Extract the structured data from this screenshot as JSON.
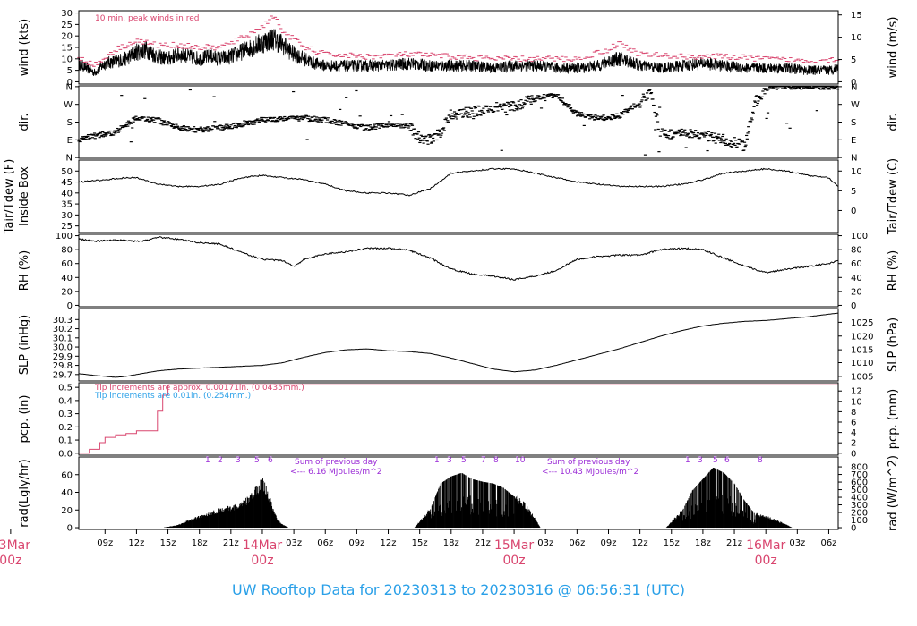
{
  "title": "UW Rooftop Data for 20230313  to  20230316 @ 06:56:31  (UTC)",
  "colors": {
    "title": "#2aa0e8",
    "day_label": "#d9466f",
    "peak": "#d9466f",
    "pcp_fine": "#d9466f",
    "pcp_coarse": "#2aa0e8",
    "annot": "#9a2bd6",
    "trace": "#000000"
  },
  "x_axis": {
    "range_hours": [
      6.5,
      78.9
    ],
    "hour_ticks": [
      {
        "h": 9,
        "label": "09z"
      },
      {
        "h": 12,
        "label": "12z"
      },
      {
        "h": 15,
        "label": "15z"
      },
      {
        "h": 18,
        "label": "18z"
      },
      {
        "h": 21,
        "label": "21z"
      },
      {
        "h": 27,
        "label": "03z"
      },
      {
        "h": 30,
        "label": "06z"
      },
      {
        "h": 33,
        "label": "09z"
      },
      {
        "h": 36,
        "label": "12z"
      },
      {
        "h": 39,
        "label": "15z"
      },
      {
        "h": 42,
        "label": "18z"
      },
      {
        "h": 45,
        "label": "21z"
      },
      {
        "h": 51,
        "label": "03z"
      },
      {
        "h": 54,
        "label": "06z"
      },
      {
        "h": 57,
        "label": "09z"
      },
      {
        "h": 60,
        "label": "12z"
      },
      {
        "h": 63,
        "label": "15z"
      },
      {
        "h": 66,
        "label": "18z"
      },
      {
        "h": 69,
        "label": "21z"
      },
      {
        "h": 75,
        "label": "03z"
      },
      {
        "h": 78,
        "label": "06z"
      }
    ],
    "day_ticks": [
      {
        "h": 0,
        "date": "13Mar",
        "time": "00z"
      },
      {
        "h": 24,
        "date": "14Mar",
        "time": "00z"
      },
      {
        "h": 48,
        "date": "15Mar",
        "time": "00z"
      },
      {
        "h": 72,
        "date": "16Mar",
        "time": "00z"
      }
    ]
  },
  "panels": {
    "wind": {
      "left_label": "wind (kts)",
      "right_label": "wind (m/s)",
      "ylim": [
        0,
        30
      ],
      "left_ticks": [
        "0",
        "5",
        "10",
        "15",
        "20",
        "25",
        "30"
      ],
      "right_ticks": [
        "0",
        "5",
        "10",
        "15"
      ],
      "right_tick_values_kts": [
        0,
        9.72,
        19.44,
        29.16
      ],
      "note": "10 min. peak winds in red"
    },
    "dir": {
      "left_label": "dir.",
      "right_label": "dir.",
      "tick_labels": [
        "N",
        "E",
        "S",
        "W",
        "N"
      ],
      "tick_values_deg": [
        0,
        90,
        180,
        270,
        360
      ]
    },
    "temp": {
      "left_label": "Tair/Tdew (F)",
      "left_label2": "Inside Box",
      "right_label": "Tair/Tdew (C)",
      "ylim": [
        22,
        55
      ],
      "left_ticks": [
        "25",
        "30",
        "35",
        "40",
        "45",
        "50"
      ],
      "right_ticks": [
        "0",
        "5",
        "10"
      ],
      "right_tick_values_f": [
        32,
        41,
        50
      ]
    },
    "rh": {
      "left_label": "RH (%)",
      "right_label": "RH (%)",
      "ylim": [
        0,
        100
      ],
      "ticks": [
        "0",
        "20",
        "40",
        "60",
        "80",
        "100"
      ]
    },
    "slp": {
      "left_label": "SLP (inHg)",
      "right_label": "SLP (hPa)",
      "ylim": [
        29.63,
        30.42
      ],
      "left_ticks": [
        "29.7",
        "29.8",
        "29.9",
        "30.0",
        "30.1",
        "30.2",
        "30.3"
      ],
      "right_ticks": [
        "1005",
        "1010",
        "1015",
        "1020",
        "1025"
      ],
      "right_tick_values_inhg": [
        29.68,
        29.83,
        29.97,
        30.12,
        30.27
      ]
    },
    "pcp": {
      "left_label": "pcp. (in)",
      "right_label": "pcp. (mm)",
      "ylim": [
        0,
        0.52
      ],
      "left_ticks": [
        "0.0",
        "0.1",
        "0.2",
        "0.3",
        "0.4",
        "0.5"
      ],
      "right_ticks": [
        "0",
        "2",
        "4",
        "6",
        "8",
        "10",
        "12"
      ],
      "right_tick_values_in": [
        0,
        0.0787,
        0.1575,
        0.2362,
        0.315,
        0.3937,
        0.4724
      ],
      "note_fine": "Tip increments are approx. 0.00171in. (0.0435mm.)",
      "note_coarse": "Tip increments are 0.01in. (0.254mm.)"
    },
    "rad": {
      "left_label": "rad(Lgly/hr)",
      "right_label": "rad (W/m^2)",
      "ylim": [
        0,
        80
      ],
      "left_ticks": [
        "0",
        "20",
        "40",
        "60"
      ],
      "right_ticks": [
        "0",
        "100",
        "200",
        "300",
        "400",
        "500",
        "600",
        "700",
        "800"
      ],
      "right_tick_values_lgly": [
        0,
        8.6,
        17.2,
        25.8,
        34.4,
        43.0,
        51.6,
        60.2,
        68.8
      ],
      "sum1": "Sum of previous day",
      "sum1b": "<--- 6.16 MJoules/m^2",
      "sum2": "Sum of previous day",
      "sum2b": "<--- 10.43 MJoules/m^2"
    }
  },
  "chart_data": {
    "type": "line",
    "x_unit": "hours since 2023-03-13 00z",
    "series": [
      {
        "panel": "wind",
        "name": "",
        "x": [
          6.5,
          8,
          9,
          10,
          11,
          12,
          13,
          14,
          15,
          16,
          17,
          18,
          19,
          20,
          21,
          22,
          23,
          24,
          25,
          26,
          27,
          28,
          29,
          30,
          32,
          34,
          36,
          38,
          40,
          42,
          44,
          46,
          48,
          50,
          52,
          54,
          56,
          57,
          58,
          59,
          60,
          62,
          64,
          66,
          68,
          70,
          72,
          74,
          76,
          78,
          78.9
        ],
        "y": [
          8,
          4,
          8,
          9,
          10,
          13,
          14,
          11,
          10,
          12,
          11,
          10,
          11,
          10,
          11,
          13,
          15,
          17,
          19,
          16,
          12,
          10,
          8,
          7,
          7,
          7,
          7,
          8,
          7,
          7,
          7,
          6,
          7,
          7,
          6,
          6,
          7,
          9,
          10,
          9,
          7,
          6,
          7,
          8,
          7,
          6,
          6,
          6,
          5,
          5,
          6
        ]
      },
      {
        "panel": "wind",
        "name": "10 min. peak",
        "x": [
          6.5,
          8,
          10,
          12,
          14,
          16,
          18,
          20,
          22,
          24,
          25,
          26,
          28,
          30,
          34,
          38,
          42,
          46,
          50,
          54,
          57,
          58,
          60,
          64,
          68,
          72,
          76,
          78.9
        ],
        "y": [
          11,
          7,
          14,
          18,
          16,
          16,
          15,
          15,
          19,
          24,
          29,
          22,
          15,
          12,
          11,
          12,
          11,
          10,
          10,
          10,
          14,
          17,
          12,
          11,
          11,
          10,
          9,
          10
        ]
      },
      {
        "panel": "dir",
        "name": "",
        "x": [
          6.5,
          8,
          10,
          12,
          14,
          16,
          18,
          20,
          22,
          24,
          26,
          28,
          30,
          32,
          34,
          36,
          38,
          39,
          40,
          41,
          42,
          44,
          46,
          48,
          50,
          52,
          54,
          56,
          58,
          60,
          61,
          62,
          64,
          66,
          68,
          70,
          71,
          72,
          74,
          76,
          78,
          78.9
        ],
        "y": [
          90,
          110,
          130,
          200,
          190,
          150,
          140,
          150,
          170,
          190,
          200,
          200,
          190,
          170,
          150,
          170,
          160,
          100,
          90,
          130,
          220,
          230,
          250,
          260,
          300,
          320,
          220,
          200,
          210,
          280,
          330,
          120,
          120,
          110,
          90,
          60,
          280,
          350,
          360,
          360,
          360,
          360
        ]
      },
      {
        "panel": "temp",
        "name": "Tair",
        "x": [
          6.5,
          9,
          11,
          12,
          14,
          16,
          18,
          20,
          22,
          24,
          26,
          28,
          30,
          32,
          34,
          36,
          38,
          40,
          42,
          44,
          46,
          48,
          50,
          52,
          54,
          56,
          58,
          60,
          62,
          64,
          66,
          68,
          70,
          72,
          74,
          76,
          78,
          78.9
        ],
        "y": [
          45,
          46,
          47,
          47,
          44,
          43,
          43,
          44,
          47,
          48,
          47,
          46,
          44,
          41,
          40,
          40,
          39,
          42,
          49,
          50,
          51,
          51,
          49,
          47,
          45,
          44,
          43,
          43,
          43,
          44,
          46,
          49,
          50,
          51,
          50,
          48,
          47,
          43
        ]
      },
      {
        "panel": "rh",
        "name": "",
        "x": [
          6.5,
          8,
          10,
          12,
          13,
          14,
          16,
          18,
          20,
          22,
          24,
          26,
          27,
          28,
          30,
          32,
          34,
          36,
          38,
          40,
          42,
          44,
          46,
          48,
          50,
          52,
          54,
          56,
          58,
          60,
          62,
          64,
          66,
          68,
          70,
          72,
          74,
          76,
          78,
          78.9
        ],
        "y": [
          95,
          92,
          94,
          92,
          93,
          98,
          95,
          90,
          88,
          76,
          66,
          64,
          56,
          66,
          74,
          77,
          82,
          82,
          79,
          68,
          52,
          45,
          42,
          37,
          42,
          50,
          66,
          70,
          72,
          72,
          80,
          82,
          80,
          68,
          56,
          47,
          52,
          56,
          60,
          64
        ]
      },
      {
        "panel": "slp",
        "name": "",
        "x": [
          6.5,
          8,
          10,
          11,
          12,
          14,
          16,
          18,
          20,
          22,
          24,
          26,
          28,
          30,
          32,
          34,
          36,
          38,
          40,
          42,
          44,
          46,
          48,
          50,
          52,
          54,
          56,
          58,
          60,
          62,
          64,
          66,
          68,
          70,
          72,
          74,
          76,
          78.9
        ],
        "y": [
          29.71,
          29.69,
          29.67,
          29.68,
          29.7,
          29.74,
          29.76,
          29.77,
          29.78,
          29.79,
          29.8,
          29.83,
          29.89,
          29.94,
          29.97,
          29.98,
          29.96,
          29.95,
          29.93,
          29.88,
          29.82,
          29.76,
          29.73,
          29.75,
          29.8,
          29.86,
          29.92,
          29.98,
          30.05,
          30.12,
          30.18,
          30.23,
          30.26,
          30.28,
          30.29,
          30.31,
          30.33,
          30.37
        ]
      },
      {
        "panel": "pcp",
        "name": "",
        "x": [
          6.5,
          7.5,
          8.5,
          9,
          10,
          11,
          12,
          13,
          13.5,
          14,
          14.5,
          15
        ],
        "y": [
          0.0,
          0.03,
          0.08,
          0.12,
          0.14,
          0.15,
          0.17,
          0.17,
          0.17,
          0.32,
          0.44,
          0.52
        ]
      },
      {
        "panel": "rad",
        "name": "",
        "x": [
          14.5,
          16,
          17,
          18,
          19,
          20,
          21,
          22,
          23,
          24,
          24.5,
          25,
          25.5,
          26,
          26.5,
          38.5,
          40,
          41,
          42,
          43,
          44,
          45,
          46,
          47,
          48,
          49,
          50,
          50.5,
          62.5,
          64,
          65,
          66,
          67,
          68,
          69,
          70,
          71,
          72,
          73,
          74,
          74.5
        ],
        "y": [
          0,
          3,
          8,
          12,
          16,
          20,
          22,
          25,
          35,
          50,
          40,
          20,
          8,
          3,
          0,
          0,
          20,
          50,
          58,
          62,
          55,
          52,
          50,
          45,
          35,
          25,
          10,
          0,
          0,
          18,
          42,
          55,
          68,
          62,
          50,
          30,
          15,
          12,
          8,
          3,
          0
        ]
      }
    ]
  }
}
